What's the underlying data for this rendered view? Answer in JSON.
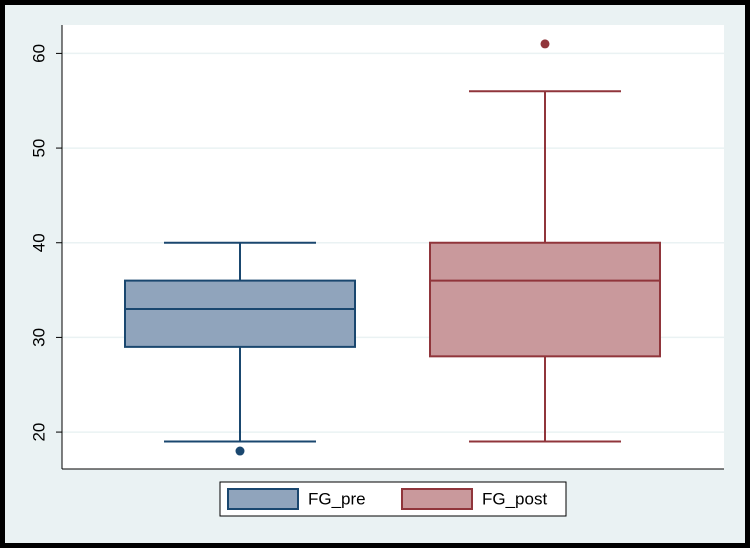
{
  "chart_data": {
    "type": "box",
    "ylim": [
      16.1,
      63
    ],
    "yticks": [
      20,
      30,
      40,
      50,
      60
    ],
    "grid": true,
    "series": [
      {
        "name": "FG_pre",
        "color": "#90a4bc",
        "stroke": "#1a476f",
        "whisker_low": 19,
        "q1": 29,
        "median": 33,
        "q3": 36,
        "whisker_high": 40,
        "outliers": [
          18
        ]
      },
      {
        "name": "FG_post",
        "color": "#c9999c",
        "stroke": "#90353b",
        "whisker_low": 19,
        "q1": 28,
        "median": 36,
        "q3": 40,
        "whisker_high": 56,
        "outliers": [
          61
        ]
      }
    ]
  }
}
